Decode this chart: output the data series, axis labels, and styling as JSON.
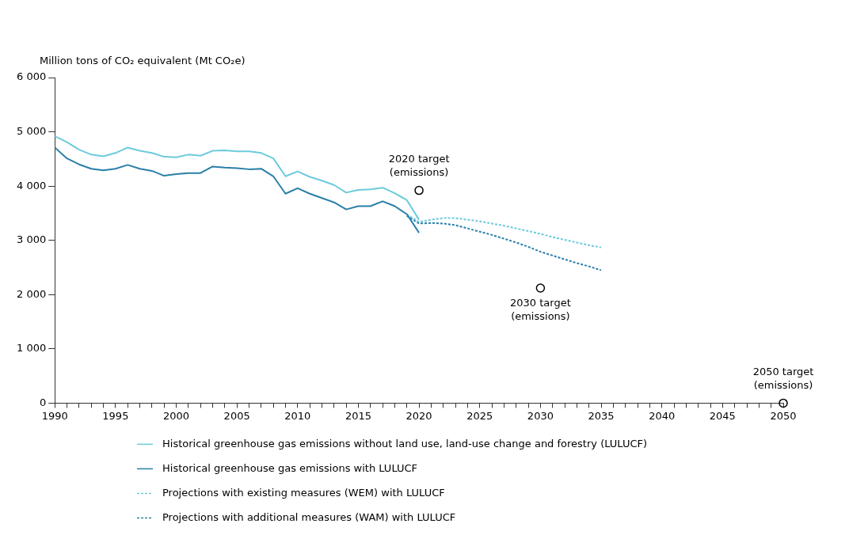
{
  "chart_data": {
    "type": "line",
    "ylabel": "Million tons of CO₂ equivalent (Mt CO₂e)",
    "xlim": [
      1990,
      2050
    ],
    "xticks": [
      1990,
      {
        "value": 1991,
        "label": null
      },
      {
        "value": 1992,
        "label": null
      },
      {
        "value": 1993,
        "label": null
      },
      {
        "value": 1994,
        "label": null
      },
      1995,
      {
        "value": 1996,
        "label": null
      },
      {
        "value": 1997,
        "label": null
      },
      {
        "value": 1998,
        "label": null
      },
      {
        "value": 1999,
        "label": null
      },
      2000,
      {
        "value": 2001,
        "label": null
      },
      {
        "value": 2002,
        "label": null
      },
      {
        "value": 2003,
        "label": null
      },
      {
        "value": 2004,
        "label": null
      },
      2005,
      {
        "value": 2006,
        "label": null
      },
      {
        "value": 2007,
        "label": null
      },
      {
        "value": 2008,
        "label": null
      },
      {
        "value": 2009,
        "label": null
      },
      2010,
      {
        "value": 2011,
        "label": null
      },
      {
        "value": 2012,
        "label": null
      },
      {
        "value": 2013,
        "label": null
      },
      {
        "value": 2014,
        "label": null
      },
      2015,
      {
        "value": 2016,
        "label": null
      },
      {
        "value": 2017,
        "label": null
      },
      {
        "value": 2018,
        "label": null
      },
      {
        "value": 2019,
        "label": null
      },
      2020,
      {
        "value": 2021,
        "label": null
      },
      {
        "value": 2022,
        "label": null
      },
      {
        "value": 2023,
        "label": null
      },
      {
        "value": 2024,
        "label": null
      },
      2025,
      {
        "value": 2026,
        "label": null
      },
      {
        "value": 2027,
        "label": null
      },
      {
        "value": 2028,
        "label": null
      },
      {
        "value": 2029,
        "label": null
      },
      2030,
      {
        "value": 2031,
        "label": null
      },
      {
        "value": 2032,
        "label": null
      },
      {
        "value": 2033,
        "label": null
      },
      {
        "value": 2034,
        "label": null
      },
      2035,
      {
        "value": 2036,
        "label": null
      },
      {
        "value": 2037,
        "label": null
      },
      {
        "value": 2038,
        "label": null
      },
      {
        "value": 2039,
        "label": null
      },
      2040,
      {
        "value": 2041,
        "label": null
      },
      {
        "value": 2042,
        "label": null
      },
      {
        "value": 2043,
        "label": null
      },
      {
        "value": 2044,
        "label": null
      },
      2045,
      {
        "value": 2046,
        "label": null
      },
      {
        "value": 2047,
        "label": null
      },
      {
        "value": 2048,
        "label": null
      },
      {
        "value": 2049,
        "label": null
      },
      2050
    ],
    "ylim": [
      0,
      6000
    ],
    "yticks": [
      0,
      {
        "value": 1000,
        "label": "1 000"
      },
      {
        "value": 2000,
        "label": "2 000"
      },
      {
        "value": 3000,
        "label": "3 000"
      },
      {
        "value": 4000,
        "label": "4 000"
      },
      {
        "value": 5000,
        "label": "5 000"
      },
      {
        "value": 6000,
        "label": "6 000"
      }
    ],
    "grid": false,
    "legend": "bottom",
    "series": [
      {
        "name": "Historical greenhouse gas emissions without land use, land-use change and forestry (LULUCF)",
        "color": "#6ccbdc",
        "line_style": "solid",
        "x": [
          1990,
          1991,
          1992,
          1993,
          1994,
          1995,
          1996,
          1997,
          1998,
          1999,
          2000,
          2001,
          2002,
          2003,
          2004,
          2005,
          2006,
          2007,
          2008,
          2009,
          2010,
          2011,
          2012,
          2013,
          2014,
          2015,
          2016,
          2017,
          2018,
          2019,
          2020
        ],
        "values": [
          4920,
          4810,
          4670,
          4580,
          4550,
          4610,
          4710,
          4650,
          4610,
          4540,
          4530,
          4580,
          4560,
          4650,
          4660,
          4640,
          4640,
          4610,
          4510,
          4180,
          4270,
          4170,
          4100,
          4020,
          3880,
          3930,
          3940,
          3970,
          3870,
          3740,
          3380
        ]
      },
      {
        "name": "Historical greenhouse gas emissions with LULUCF",
        "color": "#2a7fa8",
        "line_style": "solid",
        "x": [
          1990,
          1991,
          1992,
          1993,
          1994,
          1995,
          1996,
          1997,
          1998,
          1999,
          2000,
          2001,
          2002,
          2003,
          2004,
          2005,
          2006,
          2007,
          2008,
          2009,
          2010,
          2011,
          2012,
          2013,
          2014,
          2015,
          2016,
          2017,
          2018,
          2019,
          2020
        ],
        "values": [
          4710,
          4510,
          4400,
          4320,
          4290,
          4320,
          4390,
          4320,
          4280,
          4190,
          4220,
          4240,
          4240,
          4360,
          4340,
          4330,
          4310,
          4320,
          4180,
          3860,
          3960,
          3860,
          3780,
          3700,
          3570,
          3630,
          3630,
          3720,
          3630,
          3480,
          3140
        ]
      },
      {
        "name": "Projections with existing measures (WEM) with LULUCF",
        "color": "#6ccbdc",
        "line_style": "dashed",
        "x": [
          2019,
          2020,
          2021,
          2022,
          2023,
          2024,
          2025,
          2026,
          2027,
          2028,
          2029,
          2030,
          2031,
          2032,
          2033,
          2034,
          2035
        ],
        "values": [
          3480,
          3340,
          3380,
          3410,
          3410,
          3380,
          3350,
          3310,
          3270,
          3220,
          3170,
          3120,
          3060,
          3010,
          2960,
          2910,
          2870
        ]
      },
      {
        "name": "Projections with additional measures (WAM) with LULUCF",
        "color": "#2a7fa8",
        "line_style": "dashed",
        "x": [
          2019,
          2020,
          2021,
          2022,
          2023,
          2024,
          2025,
          2026,
          2027,
          2028,
          2029,
          2030,
          2031,
          2032,
          2033,
          2034,
          2035
        ],
        "values": [
          3450,
          3310,
          3320,
          3310,
          3280,
          3220,
          3160,
          3100,
          3030,
          2960,
          2880,
          2790,
          2720,
          2650,
          2580,
          2520,
          2450
        ]
      },
      {
        "type": "scatter",
        "color": "#000000",
        "marker": "circle",
        "x": [
          2020,
          2030,
          2050
        ],
        "values": [
          3920,
          2120,
          0
        ]
      }
    ],
    "annotations": [
      {
        "text": "2020 target\n(emissions)",
        "x": 2020,
        "y": 3920
      },
      {
        "text": "2030 target\n(emissions)",
        "x": 2030,
        "y": 2120
      },
      {
        "text": "2050 target\n(emissions)",
        "x": 2050,
        "y": 0
      }
    ]
  }
}
